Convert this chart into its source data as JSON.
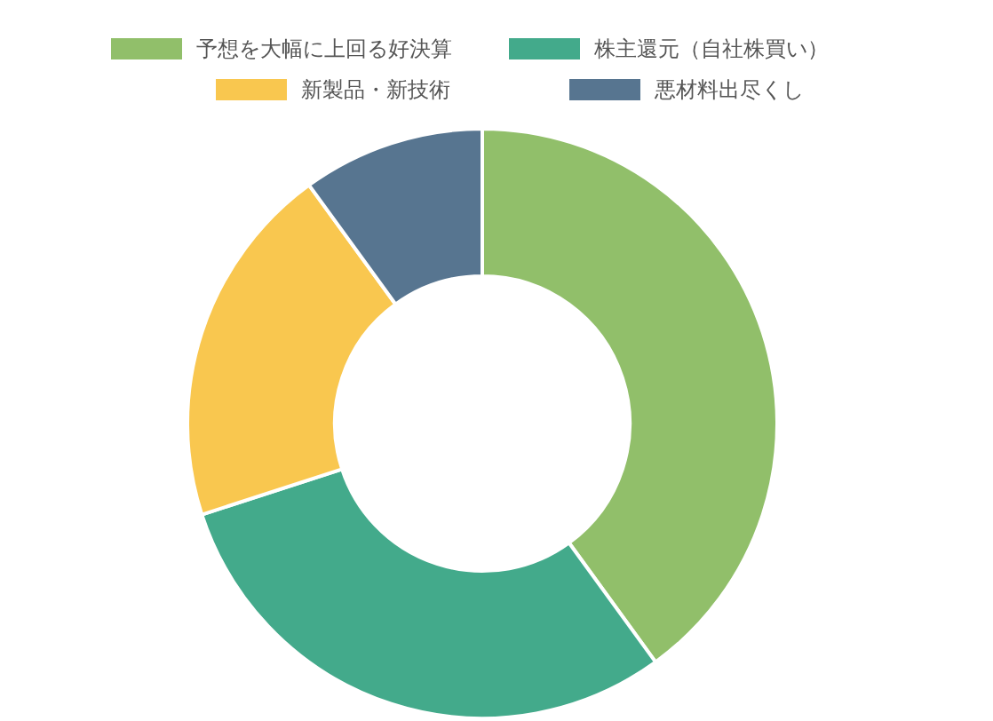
{
  "chart_data": {
    "type": "donut",
    "categories": [
      "予想を大幅に上回る好決算",
      "株主還元（自社株買い）",
      "新製品・新技術",
      "悪材料出尽くし"
    ],
    "values": [
      40,
      30,
      20,
      10
    ],
    "colors": [
      "#91bf6a",
      "#43aa8b",
      "#f9c74f",
      "#577590"
    ],
    "legend": "top"
  }
}
